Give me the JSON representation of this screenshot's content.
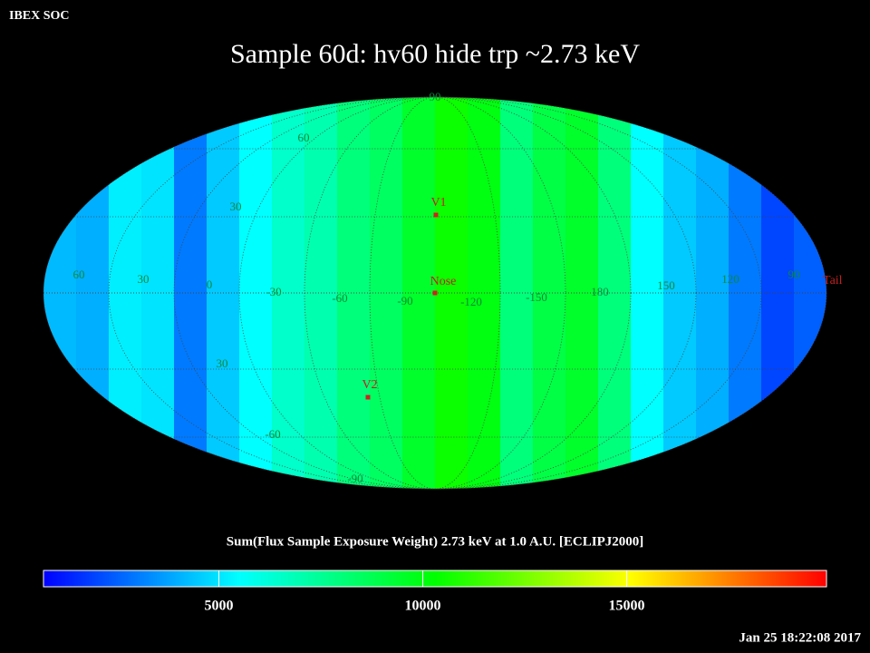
{
  "header": {
    "corner": "IBEX SOC",
    "title": "Sample 60d: hv60 hide trp ~2.73 keV",
    "timestamp": "Jan 25 18:22:08 2017"
  },
  "map": {
    "type": "mollweide",
    "colormap": [
      "#0000ff",
      "#00ffff",
      "#00ff00",
      "#ffff00",
      "#ff0000"
    ],
    "column_flux": [
      4200,
      4000,
      5200,
      5000,
      3000,
      4500,
      5500,
      6500,
      7000,
      8000,
      8500,
      9500,
      10500,
      10000,
      8000,
      9000,
      9500,
      8000,
      5500,
      4500,
      4000,
      3000,
      2000,
      2500
    ],
    "grid_labels": [
      "90",
      "60",
      "30",
      "60",
      "30",
      "0",
      "-30",
      "-60",
      "-90",
      "-120",
      "-150",
      "180",
      "150",
      "120",
      "90",
      "30",
      "-60",
      "-90"
    ],
    "markers": [
      "V1",
      "Nose",
      "V2",
      "Tail"
    ]
  },
  "colorbar": {
    "label": "Sum(Flux Sample Exposure Weight)  2.73 keV at 1.0 A.U. [ECLIPJ2000]",
    "lim": [
      700,
      19900
    ],
    "ticks": [
      5000,
      10000,
      15000
    ]
  }
}
